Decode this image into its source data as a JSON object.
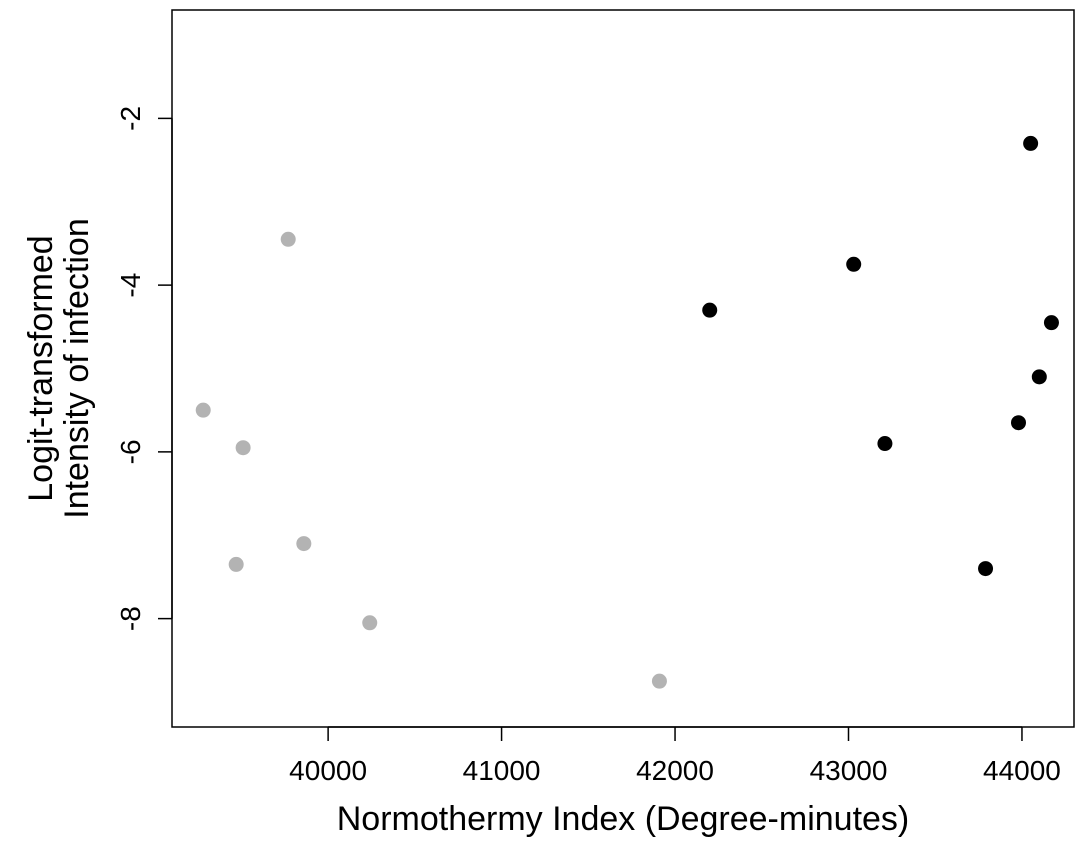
{
  "chart_data": {
    "type": "scatter",
    "title": "",
    "xlabel": "Normothermy Index (Degree-minutes)",
    "ylabel_lines": [
      "Logit-transformed",
      "Intensity of infection"
    ],
    "xlim": [
      39100,
      44300
    ],
    "ylim": [
      -9.3,
      -0.7
    ],
    "x_ticks": [
      40000,
      41000,
      42000,
      43000,
      44000
    ],
    "y_ticks": [
      -2,
      -4,
      -6,
      -8
    ],
    "grid": false,
    "legend": "none",
    "series": [
      {
        "color": "#b3b3b3",
        "points": [
          {
            "x": 39280,
            "y": -5.5
          },
          {
            "x": 39770,
            "y": -3.45
          },
          {
            "x": 39510,
            "y": -5.95
          },
          {
            "x": 39470,
            "y": -7.35
          },
          {
            "x": 39860,
            "y": -7.1
          },
          {
            "x": 40240,
            "y": -8.05
          },
          {
            "x": 41910,
            "y": -8.75
          }
        ]
      },
      {
        "color": "#000000",
        "points": [
          {
            "x": 42200,
            "y": -4.3
          },
          {
            "x": 43030,
            "y": -3.75
          },
          {
            "x": 43210,
            "y": -5.9
          },
          {
            "x": 43790,
            "y": -7.4
          },
          {
            "x": 43980,
            "y": -5.65
          },
          {
            "x": 44050,
            "y": -2.3
          },
          {
            "x": 44100,
            "y": -5.1
          },
          {
            "x": 44170,
            "y": -4.45
          }
        ]
      }
    ]
  }
}
